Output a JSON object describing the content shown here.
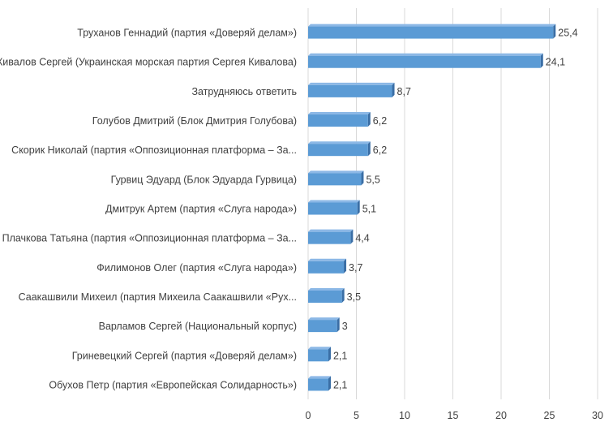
{
  "chart_data": {
    "type": "bar",
    "orientation": "horizontal",
    "categories": [
      "Труханов Геннадий (партия «Доверяй делам»)",
      "Кивалов Сергей (Украинская морская партия Сергея Кивалова)",
      "Затрудняюсь ответить",
      "Голубов Дмитрий (Блок Дмитрия Голубова)",
      "Скорик Николай (партия «Оппозиционная платформа – За...",
      "Гурвиц Эдуард (Блок Эдуарда Гурвица)",
      "Дмитрук Артем (партия «Слуга народа»)",
      "Плачкова Татьяна (партия «Оппозиционная платформа – За...",
      "Филимонов Олег (партия «Слуга народа»)",
      "Саакашвили Михеил (партия Михеила Саакашвили «Рух...",
      "Варламов Сергей (Национальный корпус)",
      "Гриневецкий Сергей (партия «Доверяй делам»)",
      "Обухов Петр (партия «Европейская Солидарность»)"
    ],
    "values": [
      25.4,
      24.1,
      8.7,
      6.2,
      6.2,
      5.5,
      5.1,
      4.4,
      3.7,
      3.5,
      3,
      2.1,
      2.1
    ],
    "data_labels": [
      "25,4",
      "24,1",
      "8,7",
      "6,2",
      "6,2",
      "5,5",
      "5,1",
      "4,4",
      "3,7",
      "3,5",
      "3",
      "2,1",
      "2,1"
    ],
    "x_ticks": [
      0,
      5,
      10,
      15,
      20,
      25,
      30
    ],
    "xlim": [
      0,
      30
    ],
    "grid": true,
    "bar_color": "#5b9bd5",
    "bar_side_color": "#3a6ea5",
    "bar_top_color": "#8cb8e6",
    "title": "",
    "xlabel": "",
    "ylabel": ""
  }
}
